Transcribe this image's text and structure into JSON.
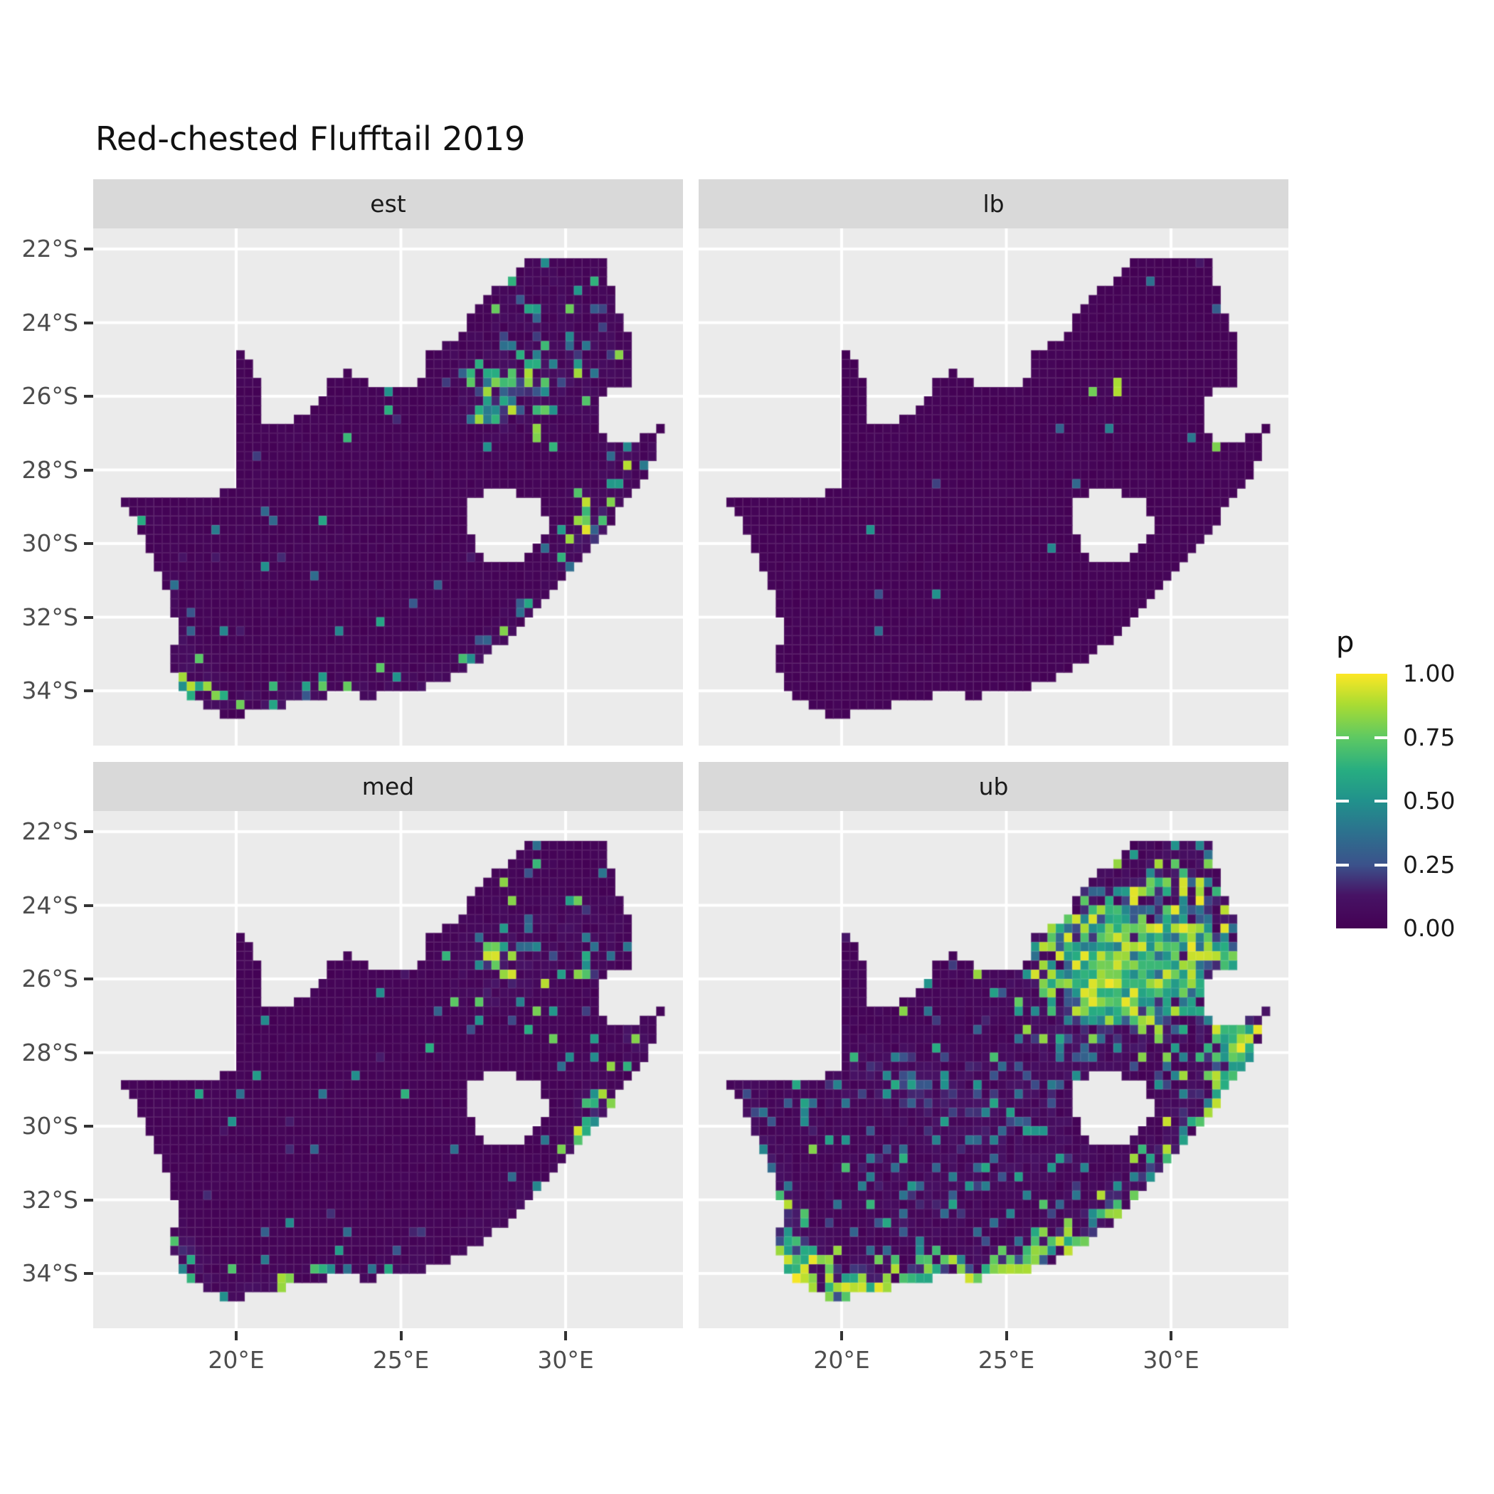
{
  "title": "Red-chested Flufftail 2019",
  "colors": {
    "panel_background": "#ebebeb",
    "strip_background": "#d9d9d9",
    "gridline": "#ffffff",
    "axis_text": "#4d4d4d",
    "tick_mark": "#333333",
    "map_zero_fill": "#440154",
    "map_max_fill": "#fde725"
  },
  "chart_data": {
    "type": "heatmap",
    "subtype": "faceted-raster-map-south-africa",
    "title": "Red-chested Flufftail 2019",
    "facets": [
      "est",
      "lb",
      "med",
      "ub"
    ],
    "facet_summaries": {
      "est": "estimate: mostly p≈0; speckled hotspots around Gauteng (28E,26S), NE interior, Eswatini border, KZN and south/west Cape coasts",
      "lb": "lower bound: almost entirely p≈0 with a few yellow cells near Gauteng and isolated teal specks",
      "med": "median: like est but slightly sparser; yellow dots in Gauteng cluster and coastal speckles",
      "ub": "upper bound: strong yellow/green blob over Gauteng and NE quadrant, yellow band along south and east coasts, diffuse blue speckle inland"
    },
    "legend": {
      "title": "p",
      "labels": [
        "1.00",
        "0.75",
        "0.50",
        "0.25",
        "0.00"
      ],
      "breaks": [
        1.0,
        0.75,
        0.5,
        0.25,
        0.0
      ],
      "position": "right"
    },
    "x_axis": {
      "tick_labels": [
        "20°E",
        "25°E",
        "30°E"
      ],
      "tick_values": [
        20,
        25,
        30
      ],
      "range_lon": [
        15.66,
        33.56
      ]
    },
    "y_axis": {
      "tick_labels": [
        "22°S",
        "24°S",
        "26°S",
        "28°S",
        "30°S",
        "32°S",
        "34°S"
      ],
      "tick_values": [
        -22,
        -24,
        -26,
        -28,
        -30,
        -32,
        -34
      ],
      "range_lat": [
        -35.49,
        -21.44
      ]
    },
    "grid_resolution_deg": 0.25,
    "gridlines": "white major gridlines at axis breaks",
    "viridis_stops": [
      [
        0.0,
        "#440154"
      ],
      [
        0.13,
        "#471365"
      ],
      [
        0.25,
        "#3b528b"
      ],
      [
        0.38,
        "#2c728e"
      ],
      [
        0.5,
        "#21918c"
      ],
      [
        0.62,
        "#27ad81"
      ],
      [
        0.75,
        "#5ec962"
      ],
      [
        0.88,
        "#aadc32"
      ],
      [
        1.0,
        "#fde725"
      ]
    ],
    "geometry": {
      "south_africa_outline": [
        [
          16.45,
          -28.58
        ],
        [
          17.1,
          -28.78
        ],
        [
          17.8,
          -28.8
        ],
        [
          18.6,
          -28.85
        ],
        [
          19.3,
          -28.72
        ],
        [
          19.98,
          -28.42
        ],
        [
          19.98,
          -24.75
        ],
        [
          20.35,
          -25.05
        ],
        [
          20.65,
          -25.6
        ],
        [
          20.7,
          -26.2
        ],
        [
          20.85,
          -26.8
        ],
        [
          21.6,
          -26.85
        ],
        [
          22.1,
          -26.4
        ],
        [
          22.65,
          -26.0
        ],
        [
          22.9,
          -25.45
        ],
        [
          23.5,
          -25.3
        ],
        [
          24.0,
          -25.65
        ],
        [
          24.75,
          -25.8
        ],
        [
          25.4,
          -25.75
        ],
        [
          25.75,
          -25.4
        ],
        [
          25.9,
          -24.75
        ],
        [
          26.45,
          -24.6
        ],
        [
          26.85,
          -24.25
        ],
        [
          27.15,
          -23.6
        ],
        [
          27.95,
          -23.05
        ],
        [
          28.35,
          -22.85
        ],
        [
          29.05,
          -22.2
        ],
        [
          29.65,
          -22.15
        ],
        [
          30.25,
          -22.3
        ],
        [
          31.2,
          -22.35
        ],
        [
          31.55,
          -23.45
        ],
        [
          31.95,
          -24.4
        ],
        [
          32.02,
          -25.35
        ],
        [
          32.05,
          -25.65
        ],
        [
          31.4,
          -25.7
        ],
        [
          30.95,
          -26.25
        ],
        [
          30.95,
          -26.95
        ],
        [
          31.35,
          -27.25
        ],
        [
          32.1,
          -27.2
        ],
        [
          32.9,
          -26.85
        ],
        [
          32.55,
          -28.15
        ],
        [
          32.1,
          -28.6
        ],
        [
          31.4,
          -29.35
        ],
        [
          30.7,
          -30.2
        ],
        [
          30.05,
          -30.95
        ],
        [
          29.35,
          -31.6
        ],
        [
          28.65,
          -32.2
        ],
        [
          27.9,
          -32.85
        ],
        [
          27.1,
          -33.3
        ],
        [
          26.3,
          -33.7
        ],
        [
          25.65,
          -33.95
        ],
        [
          25.0,
          -33.95
        ],
        [
          24.2,
          -34.15
        ],
        [
          23.3,
          -34.1
        ],
        [
          22.3,
          -34.15
        ],
        [
          21.4,
          -34.4
        ],
        [
          20.6,
          -34.45
        ],
        [
          20.0,
          -34.8
        ],
        [
          19.35,
          -34.6
        ],
        [
          18.85,
          -34.35
        ],
        [
          18.45,
          -34.2
        ],
        [
          18.3,
          -33.85
        ],
        [
          17.95,
          -33.15
        ],
        [
          18.25,
          -32.6
        ],
        [
          18.1,
          -31.8
        ],
        [
          17.55,
          -30.6
        ],
        [
          17.0,
          -29.5
        ],
        [
          16.6,
          -28.9
        ]
      ],
      "lesotho_hole": [
        [
          26.95,
          -28.95
        ],
        [
          27.5,
          -28.6
        ],
        [
          28.15,
          -28.6
        ],
        [
          28.85,
          -28.65
        ],
        [
          29.35,
          -29.05
        ],
        [
          29.45,
          -29.55
        ],
        [
          29.1,
          -30.05
        ],
        [
          28.5,
          -30.6
        ],
        [
          27.9,
          -30.6
        ],
        [
          27.35,
          -30.2
        ],
        [
          27.0,
          -29.55
        ]
      ]
    },
    "cluster_format": "[lon, lat, sigma_lon, sigma_lat, density, p_low, p_high, bias]",
    "facet_render": {
      "est": {
        "seed": 11,
        "noise": {
          "d": 0.03,
          "lo": 0.12,
          "hi": 0.75,
          "b": 1.5
        },
        "clusters": [
          [
            28.0,
            -26.05,
            0.55,
            0.45,
            0.5,
            0.3,
            1.0,
            0.6
          ],
          [
            28.2,
            -25.6,
            1.1,
            0.8,
            0.22,
            0.2,
            0.95,
            0.9
          ],
          [
            29.7,
            -24.4,
            1.7,
            1.1,
            0.1,
            0.2,
            0.9,
            1.0
          ],
          [
            30.8,
            -25.2,
            1.0,
            0.9,
            0.12,
            0.2,
            0.9,
            1.0
          ],
          [
            29.2,
            -23.2,
            1.3,
            0.7,
            0.07,
            0.2,
            0.85,
            1.0
          ],
          [
            31.9,
            -27.65,
            0.45,
            0.4,
            0.38,
            0.3,
            1.0,
            0.8
          ],
          [
            31.0,
            -28.9,
            0.5,
            0.5,
            0.22,
            0.25,
            0.95,
            0.9
          ],
          [
            30.9,
            -29.9,
            0.45,
            0.5,
            0.35,
            0.3,
            1.0,
            0.8
          ],
          [
            30.2,
            -30.9,
            0.4,
            0.5,
            0.3,
            0.3,
            0.95,
            0.9
          ],
          [
            28.8,
            -32.1,
            0.5,
            0.45,
            0.22,
            0.25,
            0.9,
            1.0
          ],
          [
            27.5,
            -33.1,
            0.6,
            0.4,
            0.2,
            0.25,
            0.9,
            1.0
          ],
          [
            25.6,
            -33.9,
            0.7,
            0.35,
            0.22,
            0.25,
            0.9,
            1.0
          ],
          [
            23.0,
            -34.05,
            0.9,
            0.3,
            0.22,
            0.25,
            0.9,
            1.0
          ],
          [
            20.8,
            -34.4,
            0.9,
            0.3,
            0.28,
            0.3,
            0.95,
            0.9
          ],
          [
            18.6,
            -34.1,
            0.45,
            0.5,
            0.5,
            0.3,
            1.0,
            0.7
          ],
          [
            18.25,
            -33.2,
            0.3,
            0.6,
            0.3,
            0.25,
            0.95,
            0.9
          ],
          [
            17.9,
            -31.9,
            0.25,
            0.7,
            0.12,
            0.2,
            0.8,
            1.0
          ]
        ]
      },
      "lb": {
        "seed": 22,
        "noise": {
          "d": 0.007,
          "lo": 0.12,
          "hi": 0.55,
          "b": 1.6
        },
        "clusters": [
          [
            27.85,
            -25.95,
            0.45,
            0.4,
            0.09,
            0.55,
            1.0,
            0.6
          ],
          [
            29.9,
            -24.5,
            1.4,
            1.0,
            0.015,
            0.2,
            0.7,
            1.2
          ],
          [
            31.5,
            -27.6,
            0.5,
            0.5,
            0.04,
            0.3,
            1.0,
            1.0
          ],
          [
            30.9,
            -29.9,
            0.4,
            0.4,
            0.05,
            0.3,
            0.9,
            1.0
          ]
        ]
      },
      "med": {
        "seed": 33,
        "noise": {
          "d": 0.024,
          "lo": 0.12,
          "hi": 0.75,
          "b": 1.5
        },
        "clusters": [
          [
            28.0,
            -26.05,
            0.5,
            0.42,
            0.42,
            0.3,
            1.0,
            0.55
          ],
          [
            28.2,
            -25.6,
            1.1,
            0.8,
            0.17,
            0.2,
            0.95,
            1.0
          ],
          [
            29.8,
            -24.4,
            1.7,
            1.1,
            0.08,
            0.2,
            0.9,
            1.1
          ],
          [
            30.8,
            -25.2,
            1.0,
            0.9,
            0.1,
            0.2,
            0.9,
            1.0
          ],
          [
            31.9,
            -27.65,
            0.45,
            0.4,
            0.32,
            0.3,
            1.0,
            0.8
          ],
          [
            31.0,
            -28.9,
            0.5,
            0.5,
            0.18,
            0.25,
            0.95,
            0.9
          ],
          [
            30.9,
            -29.9,
            0.45,
            0.5,
            0.3,
            0.3,
            1.0,
            0.8
          ],
          [
            30.2,
            -30.9,
            0.4,
            0.5,
            0.25,
            0.3,
            0.95,
            0.9
          ],
          [
            28.8,
            -32.1,
            0.5,
            0.45,
            0.18,
            0.25,
            0.9,
            1.0
          ],
          [
            27.5,
            -33.1,
            0.6,
            0.4,
            0.16,
            0.25,
            0.9,
            1.0
          ],
          [
            25.6,
            -33.9,
            0.7,
            0.35,
            0.18,
            0.25,
            0.9,
            1.0
          ],
          [
            23.0,
            -34.05,
            0.9,
            0.3,
            0.18,
            0.25,
            0.9,
            1.0
          ],
          [
            20.8,
            -34.4,
            0.9,
            0.3,
            0.24,
            0.3,
            0.95,
            0.9
          ],
          [
            18.6,
            -34.15,
            0.45,
            0.5,
            0.45,
            0.3,
            1.0,
            0.7
          ],
          [
            18.25,
            -33.2,
            0.3,
            0.6,
            0.25,
            0.25,
            0.95,
            0.9
          ]
        ]
      },
      "ub": {
        "seed": 44,
        "noise": {
          "d": 0.08,
          "lo": 0.13,
          "hi": 0.85,
          "b": 1.4
        },
        "clusters": [
          [
            28.05,
            -26.1,
            0.5,
            0.42,
            0.97,
            0.8,
            1.0,
            0.5
          ],
          [
            28.1,
            -26.1,
            1.1,
            0.85,
            0.6,
            0.45,
            1.0,
            0.7
          ],
          [
            28.5,
            -25.3,
            1.7,
            1.1,
            0.42,
            0.35,
            1.0,
            0.8
          ],
          [
            30.2,
            -24.2,
            1.9,
            1.3,
            0.3,
            0.3,
            1.0,
            0.9
          ],
          [
            31.3,
            -25.4,
            1.1,
            1.0,
            0.4,
            0.35,
            1.0,
            0.8
          ],
          [
            26.9,
            -24.6,
            1.3,
            0.9,
            0.25,
            0.3,
            0.95,
            1.0
          ],
          [
            29.8,
            -26.7,
            1.3,
            0.9,
            0.3,
            0.3,
            0.95,
            0.9
          ],
          [
            26.8,
            -28.2,
            1.4,
            1.0,
            0.14,
            0.2,
            0.8,
            1.2
          ],
          [
            31.9,
            -27.6,
            0.5,
            0.5,
            0.6,
            0.5,
            1.0,
            0.7
          ],
          [
            32.3,
            -28.3,
            0.5,
            0.6,
            0.6,
            0.5,
            1.0,
            0.7
          ],
          [
            31.6,
            -29.1,
            0.5,
            0.6,
            0.55,
            0.45,
            1.0,
            0.8
          ],
          [
            30.8,
            -30.1,
            0.5,
            0.6,
            0.55,
            0.45,
            1.0,
            0.8
          ],
          [
            29.8,
            -31.2,
            0.6,
            0.5,
            0.5,
            0.4,
            1.0,
            0.8
          ],
          [
            28.6,
            -32.3,
            0.7,
            0.5,
            0.5,
            0.4,
            1.0,
            0.8
          ],
          [
            27.3,
            -33.2,
            0.8,
            0.45,
            0.5,
            0.4,
            1.0,
            0.8
          ],
          [
            25.7,
            -33.9,
            0.8,
            0.4,
            0.55,
            0.45,
            1.0,
            0.7
          ],
          [
            23.8,
            -34.1,
            0.9,
            0.35,
            0.55,
            0.5,
            1.0,
            0.7
          ],
          [
            21.8,
            -34.25,
            1.0,
            0.35,
            0.6,
            0.5,
            1.0,
            0.6
          ],
          [
            20.2,
            -34.5,
            0.8,
            0.4,
            0.7,
            0.55,
            1.0,
            0.6
          ],
          [
            18.7,
            -34.1,
            0.55,
            0.6,
            0.85,
            0.55,
            1.0,
            0.5
          ],
          [
            18.3,
            -33.0,
            0.35,
            0.8,
            0.5,
            0.4,
            1.0,
            0.8
          ],
          [
            17.9,
            -31.7,
            0.3,
            0.9,
            0.3,
            0.3,
            0.9,
            1.0
          ],
          [
            17.3,
            -30.2,
            0.3,
            0.9,
            0.2,
            0.25,
            0.85,
            1.0
          ],
          [
            21.3,
            -28.7,
            1.8,
            0.6,
            0.22,
            0.15,
            0.55,
            1.3
          ],
          [
            23.6,
            -29.6,
            1.6,
            0.7,
            0.16,
            0.15,
            0.5,
            1.3
          ],
          [
            25.6,
            -30.6,
            1.4,
            0.9,
            0.14,
            0.15,
            0.5,
            1.3
          ],
          [
            22.2,
            -31.8,
            1.5,
            1.0,
            0.12,
            0.15,
            0.5,
            1.3
          ]
        ]
      }
    }
  }
}
